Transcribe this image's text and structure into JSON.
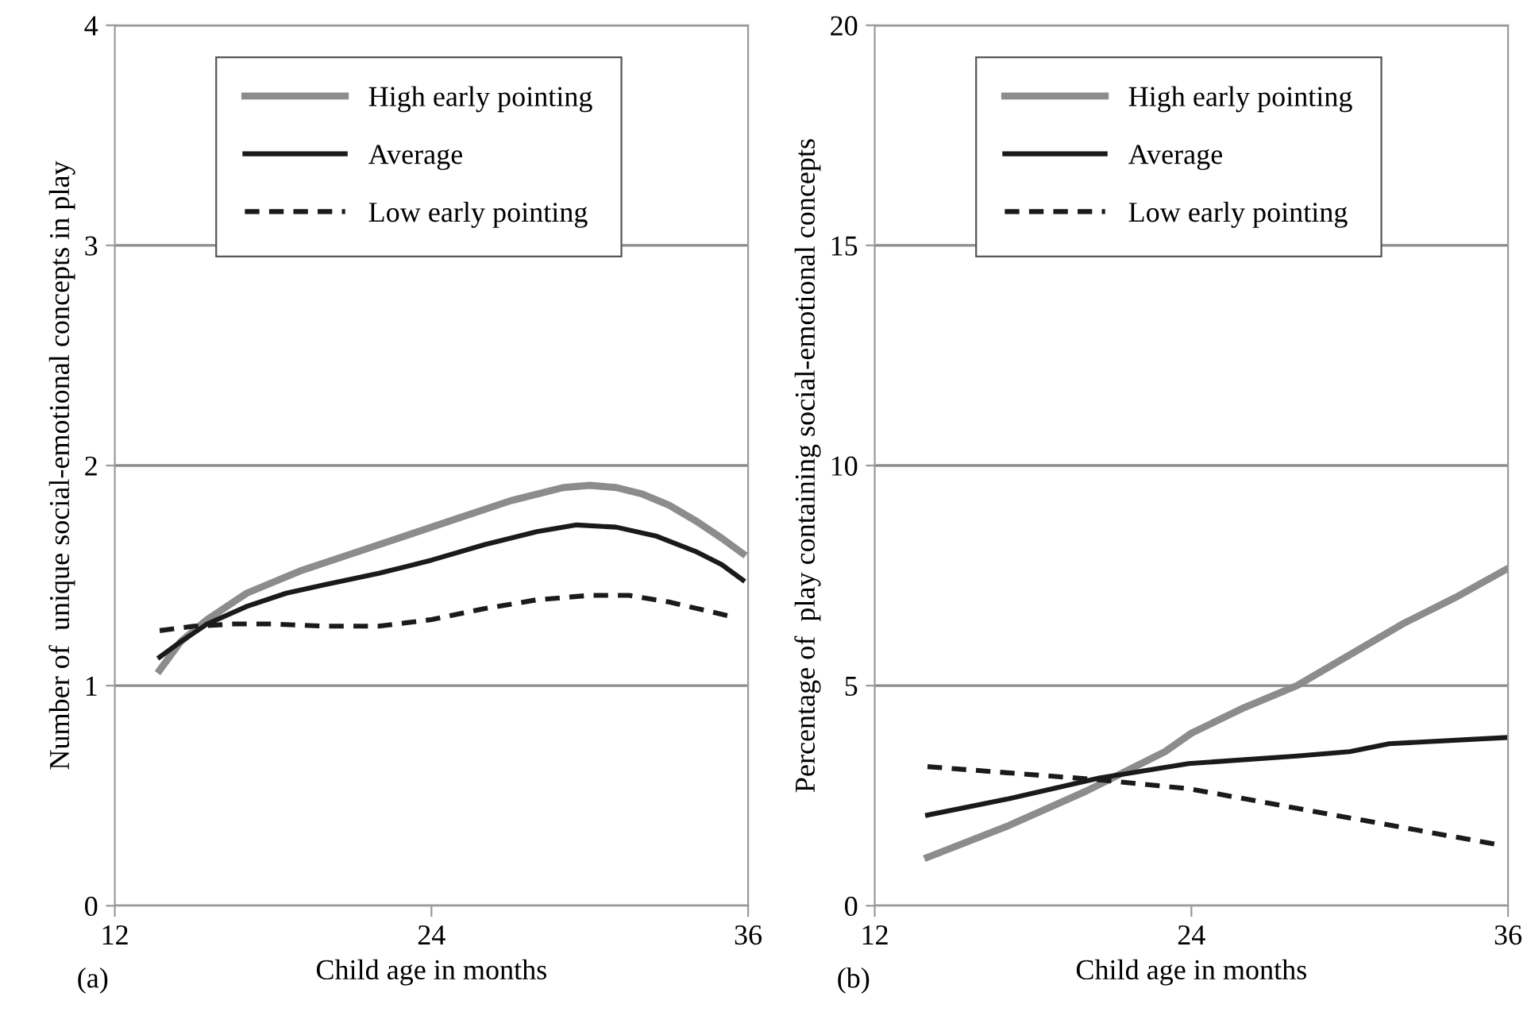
{
  "chart_data": [
    {
      "type": "line",
      "xlabel": "Child age in months",
      "ylabel": "Number of  unique social-emotional concepts in play",
      "annotations": [
        "(a)"
      ],
      "xlim": [
        12,
        36
      ],
      "xticks": [
        12,
        24,
        36
      ],
      "ylim": [
        0,
        4
      ],
      "yticks": [
        0,
        1,
        2,
        3,
        4
      ],
      "grid": "y",
      "legend": "top",
      "series": [
        {
          "name": "High early pointing",
          "color": "#8c8c8c",
          "line_style": "solid",
          "x": [
            13.7,
            14.5,
            15.5,
            17,
            19,
            21,
            23,
            25,
            27,
            29,
            30,
            31,
            32,
            33,
            34,
            35,
            35.8
          ],
          "values": [
            1.07,
            1.2,
            1.3,
            1.42,
            1.52,
            1.6,
            1.68,
            1.76,
            1.84,
            1.9,
            1.91,
            1.9,
            1.87,
            1.82,
            1.75,
            1.67,
            1.6
          ]
        },
        {
          "name": "Average",
          "color": "#1a1a1a",
          "line_style": "solid",
          "x": [
            13.7,
            14.5,
            15.5,
            17,
            18.5,
            20,
            22,
            24,
            26,
            28,
            29.5,
            31,
            32.5,
            34,
            35,
            35.8
          ],
          "values": [
            1.13,
            1.2,
            1.28,
            1.36,
            1.42,
            1.46,
            1.51,
            1.57,
            1.64,
            1.7,
            1.73,
            1.72,
            1.68,
            1.61,
            1.55,
            1.48
          ]
        },
        {
          "name": "Low early pointing",
          "color": "#1a1a1a",
          "line_style": "dashed",
          "x": [
            13.7,
            15,
            16.5,
            18,
            20,
            22,
            24,
            26,
            28,
            30,
            31.5,
            33,
            35.5
          ],
          "values": [
            1.25,
            1.27,
            1.28,
            1.28,
            1.27,
            1.27,
            1.3,
            1.35,
            1.39,
            1.41,
            1.41,
            1.38,
            1.31
          ]
        }
      ]
    },
    {
      "type": "line",
      "xlabel": "Child age in months",
      "ylabel": "Percentage of  play containing social-emotional concepts",
      "annotations": [
        "(b)"
      ],
      "xlim": [
        12,
        36
      ],
      "xticks": [
        12,
        24,
        36
      ],
      "ylim": [
        0,
        20
      ],
      "yticks": [
        0,
        5,
        10,
        15,
        20
      ],
      "grid": "y",
      "legend": "top",
      "series": [
        {
          "name": "High early pointing",
          "color": "#8c8c8c",
          "line_style": "solid",
          "x": [
            14,
            17,
            20,
            21,
            23,
            24,
            26,
            28,
            30,
            32,
            34,
            35.9
          ],
          "values": [
            1.1,
            1.8,
            2.6,
            2.9,
            3.5,
            3.92,
            4.5,
            5.0,
            5.7,
            6.4,
            7.0,
            7.63
          ]
        },
        {
          "name": "Average",
          "color": "#1a1a1a",
          "line_style": "solid",
          "x": [
            14,
            17,
            20.5,
            23.9,
            28,
            30,
            31.5,
            35.9
          ],
          "values": [
            2.06,
            2.42,
            2.9,
            3.23,
            3.4,
            3.5,
            3.68,
            3.82
          ]
        },
        {
          "name": "Low early pointing",
          "color": "#1a1a1a",
          "line_style": "dashed",
          "x": [
            14,
            20.3,
            23.9,
            28.3,
            35.5
          ],
          "values": [
            3.16,
            2.87,
            2.66,
            2.18,
            1.4
          ]
        }
      ]
    }
  ]
}
